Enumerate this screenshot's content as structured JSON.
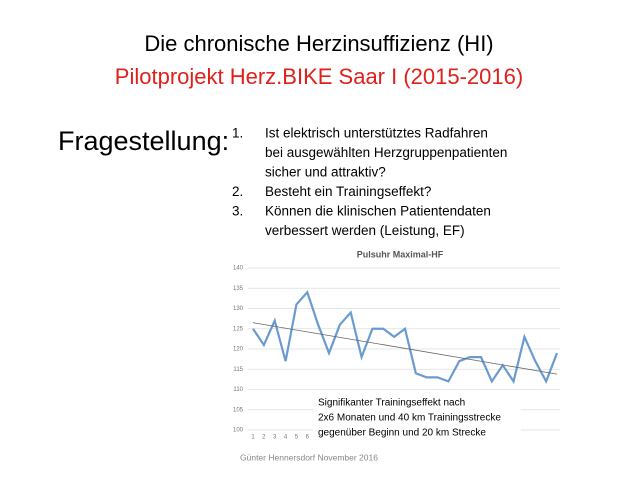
{
  "title": "Die chronische Herzinsuffizienz (HI)",
  "subtitle": "Pilotprojekt Herz.BIKE Saar I (2015-2016)",
  "label": "Fragestellung:",
  "items": [
    {
      "number": "1.",
      "lines": [
        "Ist elektrisch unterstütztes Radfahren",
        "bei ausgewählten Herzgruppenpatienten",
        "sicher und attraktiv?"
      ]
    },
    {
      "number": "2.",
      "lines": [
        "Besteht ein Trainingseffekt?"
      ]
    },
    {
      "number": "3.",
      "lines": [
        "Können die klinischen Patientendaten",
        "verbessert werden (Leistung, EF)"
      ]
    }
  ],
  "chart_data": {
    "type": "line",
    "title": "Pulsuhr Maximal-HF",
    "categories": [
      "1",
      "2",
      "3",
      "4",
      "5",
      "6",
      null,
      null,
      null,
      null,
      null,
      null,
      null,
      null,
      null,
      null,
      null,
      null,
      null,
      null,
      null,
      null,
      null,
      null,
      null,
      null,
      null,
      null,
      null
    ],
    "values": [
      125,
      121,
      127,
      117,
      131,
      134,
      126,
      119,
      126,
      129,
      118,
      125,
      125,
      123,
      125,
      114,
      113,
      113,
      112,
      117,
      118,
      118,
      112,
      116,
      112,
      123,
      117,
      112,
      119
    ],
    "color": "#6a9bcf",
    "ylim": [
      100,
      140
    ],
    "yticks": [
      100,
      105,
      110,
      115,
      120,
      125,
      130,
      135,
      140
    ],
    "grid": true,
    "trend": {
      "start": 126.5,
      "end": 113.8
    },
    "annotation": [
      "Signifikanter Trainingseffekt nach",
      "2x6 Monaten und 40 km Trainingsstrecke",
      "gegenüber Beginn und 20 km Strecke"
    ]
  },
  "footer": "Günter Hennersdorf November 2016"
}
